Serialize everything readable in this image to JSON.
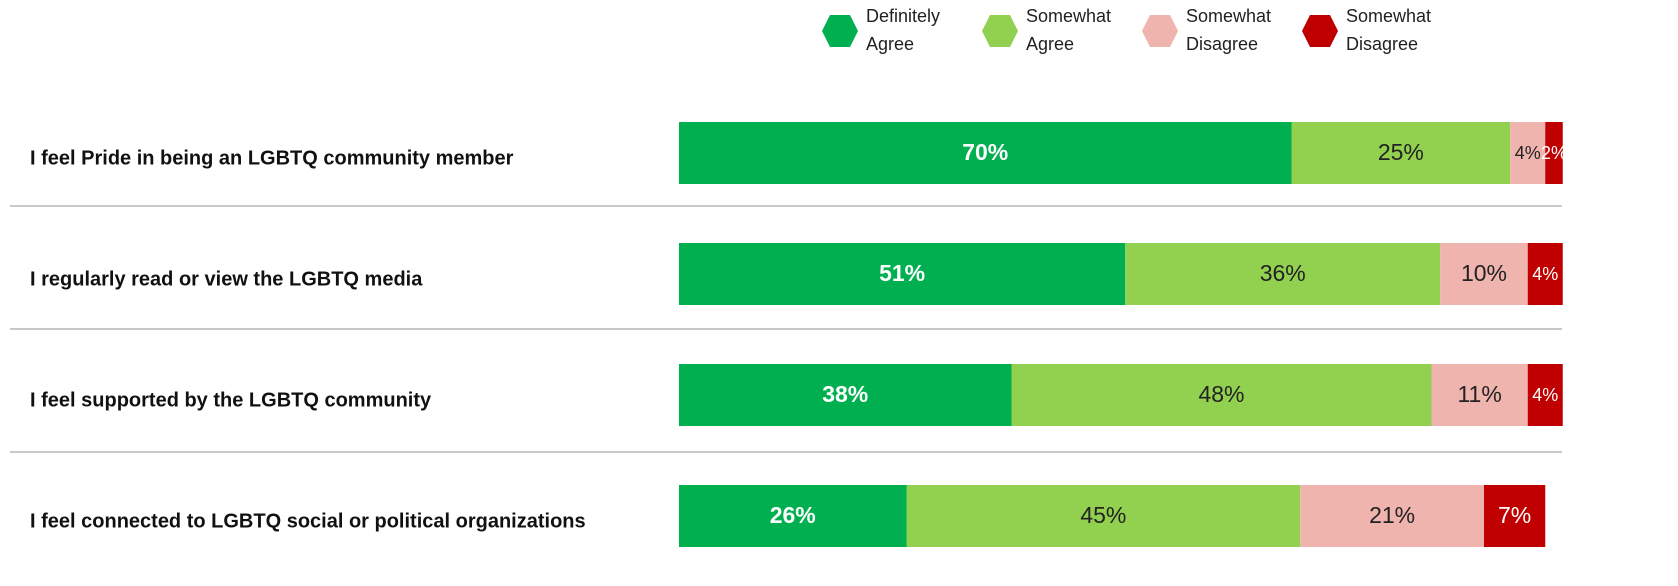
{
  "chart_data": {
    "type": "stacked-bar-horizontal",
    "categories": [
      "I feel Pride in being an LGBTQ community member",
      "I regularly read or view the LGBTQ media",
      "I feel supported by the LGBTQ community",
      "I feel connected to LGBTQ social or political organizations"
    ],
    "series": [
      {
        "name": "Definitely Agree",
        "color": "#00b050",
        "values": [
          70,
          51,
          38,
          26
        ],
        "value_labels": [
          "70%",
          "51%",
          "38%",
          "26%"
        ]
      },
      {
        "name": "Somewhat Agree",
        "color": "#92d050",
        "values": [
          25,
          36,
          48,
          45
        ],
        "value_labels": [
          "25%",
          "36%",
          "48%",
          "45%"
        ]
      },
      {
        "name": "Somewhat Disagree",
        "color": "#f0b4ae",
        "values": [
          4,
          10,
          11,
          21
        ],
        "value_labels": [
          "4%",
          "10%",
          "11%",
          "21%"
        ]
      },
      {
        "name": "Somewhat Disagree",
        "color": "#c00000",
        "values": [
          2,
          4,
          4,
          7
        ],
        "value_labels": [
          "2%",
          "4%",
          "4%",
          "7%"
        ]
      }
    ],
    "xlim": [
      0,
      100
    ],
    "legend": "top"
  }
}
